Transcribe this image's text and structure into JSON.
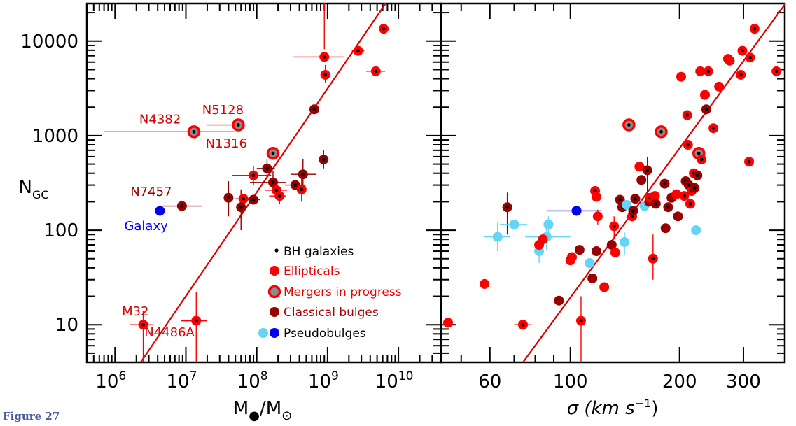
{
  "figure_label": "Figure 27",
  "colors": {
    "black": "#000000",
    "ellipticals": "#ff0000",
    "mergers_ring": "#ff0000",
    "mergers_fill": "#8c8c8c",
    "classical": "#990000",
    "pseudo": "#66d4f5",
    "galaxy": "#0000ee",
    "fit": "#dd0000"
  },
  "legend": {
    "bh": "BH galaxies",
    "ellipticals": "Ellipticals",
    "mergers": "Mergers in progress",
    "classical": "Classical bulges",
    "pseudo": "Pseudobulges"
  },
  "chart_data": [
    {
      "type": "scatter",
      "ylabel": "N",
      "ylabel_sub": "GC",
      "xlabel": "M",
      "xlabel_sub": "●",
      "xlabel_denominator": "M",
      "xlabel_denominator_sub": "⊙",
      "x_log": true,
      "y_log": true,
      "xlim": [
        400000,
        40000000000
      ],
      "ylim": [
        4,
        25000
      ],
      "x_ticks": [
        {
          "base": "10",
          "exp": "6"
        },
        {
          "base": "10",
          "exp": "7"
        },
        {
          "base": "10",
          "exp": "8"
        },
        {
          "base": "10",
          "exp": "9"
        },
        {
          "base": "10",
          "exp": "10"
        }
      ],
      "y_ticks": [
        "10",
        "100",
        "1000",
        "10000"
      ],
      "y_tick_values": [
        10,
        100,
        1000,
        10000
      ],
      "x_tick_values": [
        1000000,
        10000000,
        100000000,
        1000000000,
        10000000000
      ],
      "fit_line": [
        [
          2300000,
          4
        ],
        [
          6600000000,
          25000
        ]
      ],
      "annotations": [
        {
          "text": "N4382",
          "x": 2200000,
          "y": 1350,
          "color": "#dd0000"
        },
        {
          "text": "N5128",
          "x": 17000000,
          "y": 1700,
          "color": "#dd0000"
        },
        {
          "text": "N1316",
          "x": 19000000,
          "y": 750,
          "color": "#dd0000"
        },
        {
          "text": "N7457",
          "x": 1650000,
          "y": 230,
          "color": "#990000"
        },
        {
          "text": "Galaxy",
          "x": 1350000,
          "y": 100,
          "color": "#0000ee"
        },
        {
          "text": "M32",
          "x": 1250000,
          "y": 12.5,
          "color": "#dd0000"
        },
        {
          "text": "N4486A",
          "x": 2600000,
          "y": 7.5,
          "color": "#dd0000"
        }
      ],
      "points": [
        {
          "x": 6200000000,
          "y": 13500,
          "cls": "ellipticals",
          "bh": true
        },
        {
          "x": 2700000000,
          "y": 7900,
          "cls": "ellipticals",
          "bh": true,
          "xerr": [
            2200000000,
            3300000000
          ]
        },
        {
          "x": 900000000,
          "y": 6800,
          "cls": "ellipticals",
          "bh": true,
          "xerr": [
            330000000,
            1700000000
          ],
          "yerr": [
            5600000,
            8200
          ]
        },
        {
          "x": 930000000,
          "y": 4400,
          "cls": "ellipticals",
          "bh": true,
          "yerr": [
            3600,
            5600
          ]
        },
        {
          "x": 4800000000,
          "y": 4800,
          "cls": "ellipticals",
          "bh": true,
          "xerr": [
            3500000000,
            6500000000
          ]
        },
        {
          "x": 650000000,
          "y": 1900,
          "cls": "classical",
          "bh": true
        },
        {
          "x": 13000000,
          "y": 1100,
          "cls": "mergers",
          "bh": true,
          "xerr": [
            700000,
            50000000
          ]
        },
        {
          "x": 55000000,
          "y": 1300,
          "cls": "mergers",
          "bh": true,
          "xerr": [
            20000000,
            65000000
          ]
        },
        {
          "x": 170000000,
          "y": 650,
          "cls": "mergers",
          "bh": true
        },
        {
          "x": 880000000,
          "y": 560,
          "cls": "classical",
          "bh": true,
          "yerr": [
            450,
            700
          ]
        },
        {
          "x": 140000000,
          "y": 450,
          "cls": "classical",
          "bh": true,
          "xerr": [
            100000000,
            180000000
          ],
          "yerr": [
            370,
            560
          ]
        },
        {
          "x": 90000000,
          "y": 380,
          "cls": "ellipticals",
          "bh": true,
          "xerr": [
            45000000,
            160000000
          ],
          "yerr": [
            300,
            480
          ]
        },
        {
          "x": 450000000,
          "y": 390,
          "cls": "classical",
          "bh": true,
          "xerr": [
            300000000,
            700000000
          ],
          "yerr": [
            270,
            560
          ]
        },
        {
          "x": 350000000,
          "y": 300,
          "cls": "classical",
          "bh": true,
          "xerr": [
            250000000,
            500000000
          ]
        },
        {
          "x": 170000000,
          "y": 320,
          "cls": "classical",
          "bh": true,
          "xerr": [
            80000000,
            260000000
          ],
          "yerr": [
            250,
            420
          ]
        },
        {
          "x": 190000000,
          "y": 265,
          "cls": "ellipticals",
          "bh": true,
          "xerr": [
            130000000,
            270000000
          ]
        },
        {
          "x": 430000000,
          "y": 270,
          "cls": "ellipticals",
          "bh": true,
          "yerr": [
            200,
            380
          ]
        },
        {
          "x": 210000000,
          "y": 230,
          "cls": "ellipticals",
          "bh": true,
          "xerr": [
            150000000,
            260000000
          ],
          "yerr": [
            190,
            270
          ]
        },
        {
          "x": 40000000,
          "y": 220,
          "cls": "classical",
          "bh": true,
          "yerr": [
            140,
            330
          ]
        },
        {
          "x": 65000000,
          "y": 215,
          "cls": "ellipticals",
          "bh": true,
          "xerr": [
            50000000,
            80000000
          ]
        },
        {
          "x": 90000000,
          "y": 210,
          "cls": "classical",
          "bh": true,
          "xerr": [
            70000000,
            110000000
          ]
        },
        {
          "x": 60000000,
          "y": 175,
          "cls": "classical",
          "bh": true,
          "yerr": [
            100,
            270
          ]
        },
        {
          "x": 8800000,
          "y": 180,
          "cls": "classical",
          "bh": true,
          "xerr": [
            4700000,
            17000000
          ]
        },
        {
          "x": 4300000,
          "y": 160,
          "cls": "galaxy",
          "bh": false
        },
        {
          "x": 2500000,
          "y": 10,
          "cls": "ellipticals",
          "bh": true,
          "xerr": [
            1600000,
            3500000
          ],
          "yerr": [
            4,
            14
          ]
        },
        {
          "x": 14000000,
          "y": 11,
          "cls": "ellipticals",
          "bh": true,
          "xerr": [
            8500000,
            20000000
          ],
          "yerr": [
            4,
            22
          ]
        }
      ]
    },
    {
      "type": "scatter",
      "xlabel": "σ (km s",
      "xlabel_sup": "−1",
      "xlabel_end": ")",
      "x_log": true,
      "y_log": true,
      "xlim": [
        44,
        390
      ],
      "ylim": [
        4,
        25000
      ],
      "x_ticks": [
        "60",
        "100",
        "200",
        "300"
      ],
      "x_tick_values": [
        60,
        100,
        200,
        300
      ],
      "fit_line": [
        [
          74,
          4
        ],
        [
          392,
          25000
        ]
      ],
      "points": [
        {
          "x": 46,
          "y": 10.5,
          "cls": "ellipticals",
          "bh": false
        },
        {
          "x": 58,
          "y": 27,
          "cls": "ellipticals",
          "bh": false
        },
        {
          "x": 67,
          "y": 175,
          "cls": "classical",
          "bh": true,
          "yerr": [
            90,
            250
          ]
        },
        {
          "x": 63,
          "y": 85,
          "cls": "pseudo",
          "bh": false,
          "xerr": [
            58,
            68
          ],
          "yerr": [
            60,
            120
          ]
        },
        {
          "x": 70,
          "y": 115,
          "cls": "pseudo",
          "bh": false,
          "xerr": [
            64,
            76
          ]
        },
        {
          "x": 74,
          "y": 10,
          "cls": "ellipticals",
          "bh": true,
          "xerr": [
            70,
            78
          ]
        },
        {
          "x": 87,
          "y": 115,
          "cls": "pseudo",
          "bh": false,
          "yerr": [
            90,
            140
          ]
        },
        {
          "x": 82,
          "y": 60,
          "cls": "pseudo",
          "bh": false,
          "yerr": [
            45,
            75
          ]
        },
        {
          "x": 86,
          "y": 85,
          "cls": "pseudo",
          "bh": false,
          "xerr": [
            75,
            100
          ],
          "yerr": [
            62,
            110
          ]
        },
        {
          "x": 82,
          "y": 70,
          "cls": "ellipticals",
          "bh": false
        },
        {
          "x": 84,
          "y": 80,
          "cls": "ellipticals",
          "bh": false
        },
        {
          "x": 93,
          "y": 18,
          "cls": "classical",
          "bh": false
        },
        {
          "x": 104,
          "y": 160,
          "cls": "galaxy",
          "bh": false,
          "xerr": [
            86,
            122
          ]
        },
        {
          "x": 100,
          "y": 48,
          "cls": "ellipticals",
          "bh": false
        },
        {
          "x": 101,
          "y": 52,
          "cls": "ellipticals",
          "bh": false
        },
        {
          "x": 106,
          "y": 62,
          "cls": "classical",
          "bh": false
        },
        {
          "x": 107,
          "y": 11,
          "cls": "ellipticals",
          "bh": true,
          "yerr": [
            4,
            20
          ]
        },
        {
          "x": 113,
          "y": 45,
          "cls": "pseudo",
          "bh": false
        },
        {
          "x": 115,
          "y": 31,
          "cls": "classical",
          "bh": false
        },
        {
          "x": 118,
          "y": 60,
          "cls": "classical",
          "bh": false
        },
        {
          "x": 117,
          "y": 260,
          "cls": "ellipticals",
          "bh": true
        },
        {
          "x": 118,
          "y": 225,
          "cls": "ellipticals",
          "bh": false
        },
        {
          "x": 119,
          "y": 140,
          "cls": "ellipticals",
          "bh": false,
          "yerr": [
            115,
            165
          ]
        },
        {
          "x": 124,
          "y": 25,
          "cls": "ellipticals",
          "bh": false
        },
        {
          "x": 130,
          "y": 70,
          "cls": "classical",
          "bh": false
        },
        {
          "x": 132,
          "y": 110,
          "cls": "ellipticals",
          "bh": true,
          "yerr": [
            80,
            140
          ]
        },
        {
          "x": 133,
          "y": 58,
          "cls": "ellipticals",
          "bh": false
        },
        {
          "x": 137,
          "y": 210,
          "cls": "classical",
          "bh": true
        },
        {
          "x": 139,
          "y": 175,
          "cls": "classical",
          "bh": true
        },
        {
          "x": 141,
          "y": 75,
          "cls": "pseudo",
          "bh": false,
          "yerr": [
            55,
            95
          ]
        },
        {
          "x": 143,
          "y": 185,
          "cls": "pseudo",
          "bh": false
        },
        {
          "x": 145,
          "y": 1300,
          "cls": "mergers",
          "bh": true
        },
        {
          "x": 148,
          "y": 140,
          "cls": "ellipticals",
          "bh": true
        },
        {
          "x": 149,
          "y": 160,
          "cls": "classical",
          "bh": true
        },
        {
          "x": 151,
          "y": 215,
          "cls": "classical",
          "bh": true
        },
        {
          "x": 155,
          "y": 470,
          "cls": "ellipticals",
          "bh": false
        },
        {
          "x": 157,
          "y": 340,
          "cls": "classical",
          "bh": false
        },
        {
          "x": 160,
          "y": 180,
          "cls": "pseudo",
          "bh": false
        },
        {
          "x": 163,
          "y": 430,
          "cls": "classical",
          "bh": true,
          "yerr": [
            250,
            600
          ]
        },
        {
          "x": 165,
          "y": 200,
          "cls": "classical",
          "bh": false
        },
        {
          "x": 166,
          "y": 220,
          "cls": "ellipticals",
          "bh": true
        },
        {
          "x": 169,
          "y": 50,
          "cls": "ellipticals",
          "bh": true,
          "yerr": [
            30,
            90
          ]
        },
        {
          "x": 171,
          "y": 230,
          "cls": "ellipticals",
          "bh": false
        },
        {
          "x": 172,
          "y": 190,
          "cls": "classical",
          "bh": true
        },
        {
          "x": 178,
          "y": 1100,
          "cls": "mergers",
          "bh": true
        },
        {
          "x": 182,
          "y": 310,
          "cls": "classical",
          "bh": true
        },
        {
          "x": 183,
          "y": 105,
          "cls": "classical",
          "bh": false
        },
        {
          "x": 186,
          "y": 175,
          "cls": "classical",
          "bh": true
        },
        {
          "x": 190,
          "y": 220,
          "cls": "classical",
          "bh": false
        },
        {
          "x": 196,
          "y": 240,
          "cls": "ellipticals",
          "bh": false
        },
        {
          "x": 198,
          "y": 140,
          "cls": "classical",
          "bh": false
        },
        {
          "x": 202,
          "y": 4200,
          "cls": "ellipticals",
          "bh": false
        },
        {
          "x": 206,
          "y": 230,
          "cls": "ellipticals",
          "bh": true
        },
        {
          "x": 208,
          "y": 330,
          "cls": "classical",
          "bh": true
        },
        {
          "x": 210,
          "y": 1650,
          "cls": "ellipticals",
          "bh": true
        },
        {
          "x": 211,
          "y": 800,
          "cls": "ellipticals",
          "bh": true
        },
        {
          "x": 212,
          "y": 300,
          "cls": "classical",
          "bh": true
        },
        {
          "x": 214,
          "y": 190,
          "cls": "ellipticals",
          "bh": true
        },
        {
          "x": 216,
          "y": 260,
          "cls": "ellipticals",
          "bh": true
        },
        {
          "x": 219,
          "y": 400,
          "cls": "ellipticals",
          "bh": true
        },
        {
          "x": 220,
          "y": 280,
          "cls": "classical",
          "bh": true
        },
        {
          "x": 222,
          "y": 100,
          "cls": "pseudo",
          "bh": false
        },
        {
          "x": 224,
          "y": 380,
          "cls": "classical",
          "bh": true
        },
        {
          "x": 226,
          "y": 650,
          "cls": "mergers",
          "bh": true
        },
        {
          "x": 228,
          "y": 4800,
          "cls": "ellipticals",
          "bh": false
        },
        {
          "x": 230,
          "y": 560,
          "cls": "ellipticals",
          "bh": true
        },
        {
          "x": 235,
          "y": 2700,
          "cls": "ellipticals",
          "bh": false
        },
        {
          "x": 237,
          "y": 1900,
          "cls": "classical",
          "bh": true
        },
        {
          "x": 240,
          "y": 4800,
          "cls": "ellipticals",
          "bh": true
        },
        {
          "x": 248,
          "y": 1200,
          "cls": "ellipticals",
          "bh": true
        },
        {
          "x": 257,
          "y": 3300,
          "cls": "ellipticals",
          "bh": false
        },
        {
          "x": 272,
          "y": 6500,
          "cls": "ellipticals",
          "bh": false
        },
        {
          "x": 275,
          "y": 6200,
          "cls": "ellipticals",
          "bh": false
        },
        {
          "x": 295,
          "y": 4400,
          "cls": "ellipticals",
          "bh": true
        },
        {
          "x": 298,
          "y": 7900,
          "cls": "ellipticals",
          "bh": true
        },
        {
          "x": 311,
          "y": 530,
          "cls": "ellipticals",
          "bh": true
        },
        {
          "x": 313,
          "y": 6700,
          "cls": "ellipticals",
          "bh": true
        },
        {
          "x": 322,
          "y": 13500,
          "cls": "ellipticals",
          "bh": true
        },
        {
          "x": 370,
          "y": 4800,
          "cls": "ellipticals",
          "bh": true
        }
      ]
    }
  ]
}
